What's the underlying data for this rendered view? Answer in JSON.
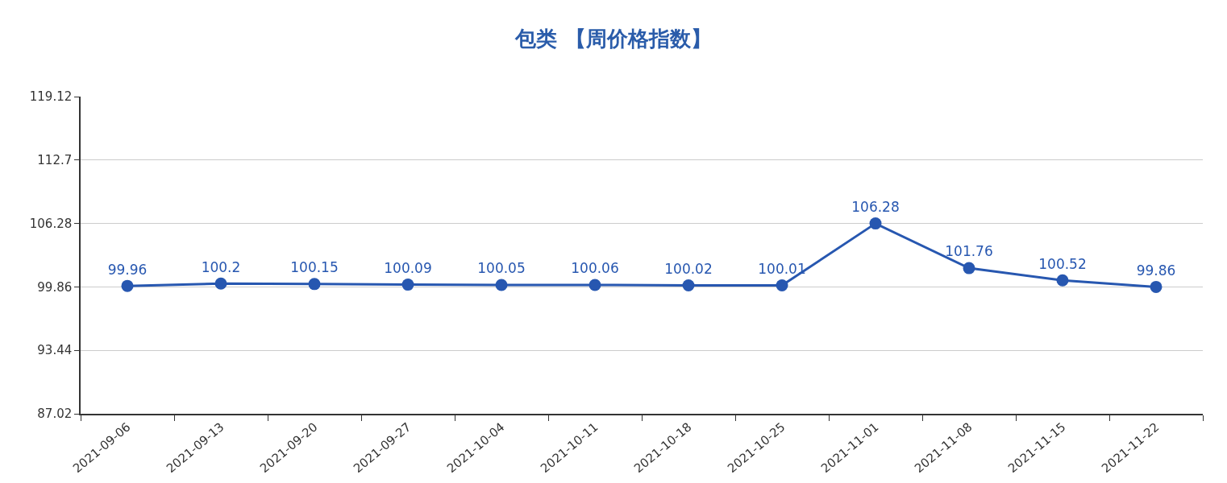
{
  "chart_data": {
    "type": "line",
    "title": "包类 【周价格指数】",
    "categories": [
      "2021-09-06",
      "2021-09-13",
      "2021-09-20",
      "2021-09-27",
      "2021-10-04",
      "2021-10-11",
      "2021-10-18",
      "2021-10-25",
      "2021-11-01",
      "2021-11-08",
      "2021-11-15",
      "2021-11-22"
    ],
    "series": [
      {
        "color": "#2757b0",
        "values": [
          99.96,
          100.2,
          100.15,
          100.09,
          100.05,
          100.06,
          100.02,
          100.01,
          106.28,
          101.76,
          100.52,
          99.86
        ]
      }
    ],
    "ylim": [
      87.02,
      119.12
    ],
    "yticks": [
      87.02,
      93.44,
      99.86,
      106.28,
      112.7,
      119.12
    ],
    "grid": "y",
    "data_labels": true,
    "marker": "circle",
    "line_style": "solid"
  }
}
